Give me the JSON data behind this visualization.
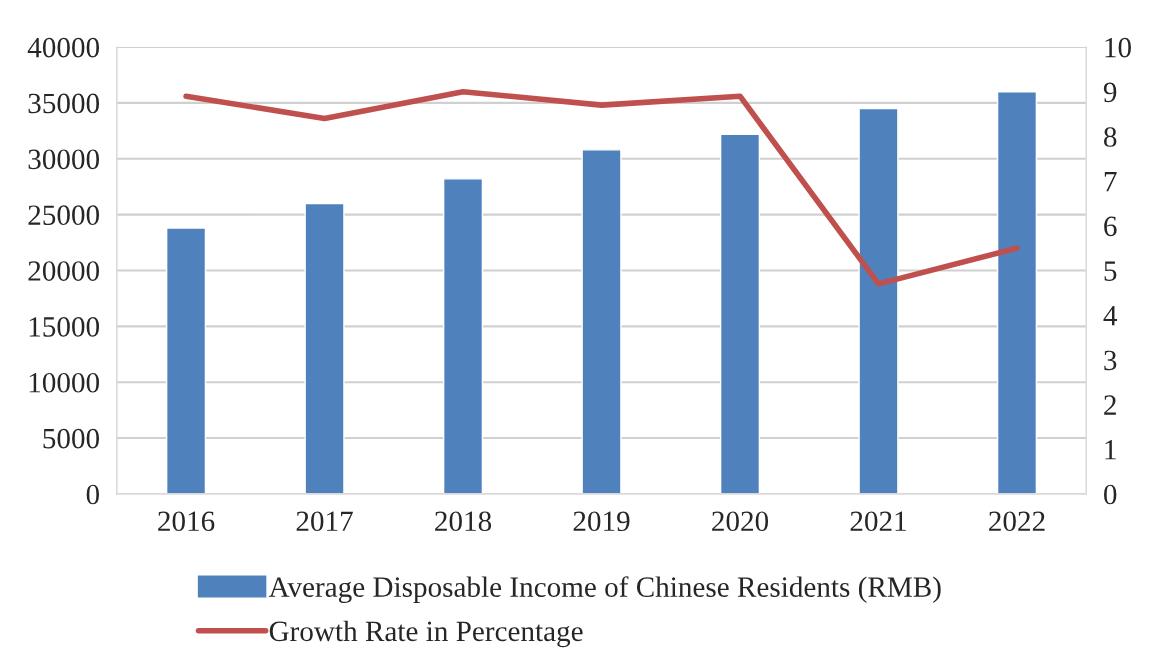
{
  "chart_data": {
    "type": "bar",
    "categories": [
      "2016",
      "2017",
      "2018",
      "2019",
      "2020",
      "2021",
      "2022"
    ],
    "series": [
      {
        "name": "Average Disposable Income of Chinese Residents (RMB)",
        "color": "#4f81bd",
        "values": [
          23800,
          26000,
          28200,
          30800,
          32200,
          34500,
          36000
        ]
      },
      {
        "name": "Growth Rate in Percentage",
        "color": "#c0504d",
        "type": "line",
        "axis": "y2",
        "values": [
          8.9,
          8.4,
          9.0,
          8.7,
          8.9,
          4.7,
          5.5
        ]
      }
    ],
    "ylim": [
      0,
      40000
    ],
    "yticks": [
      0,
      5000,
      10000,
      15000,
      20000,
      25000,
      30000,
      35000,
      40000
    ],
    "y2lim": [
      0,
      10
    ],
    "y2ticks": [
      0,
      1,
      2,
      3,
      4,
      5,
      6,
      7,
      8,
      9,
      10
    ],
    "grid": "y",
    "legend": "bottom",
    "marker": "none",
    "line_style": "solid"
  }
}
